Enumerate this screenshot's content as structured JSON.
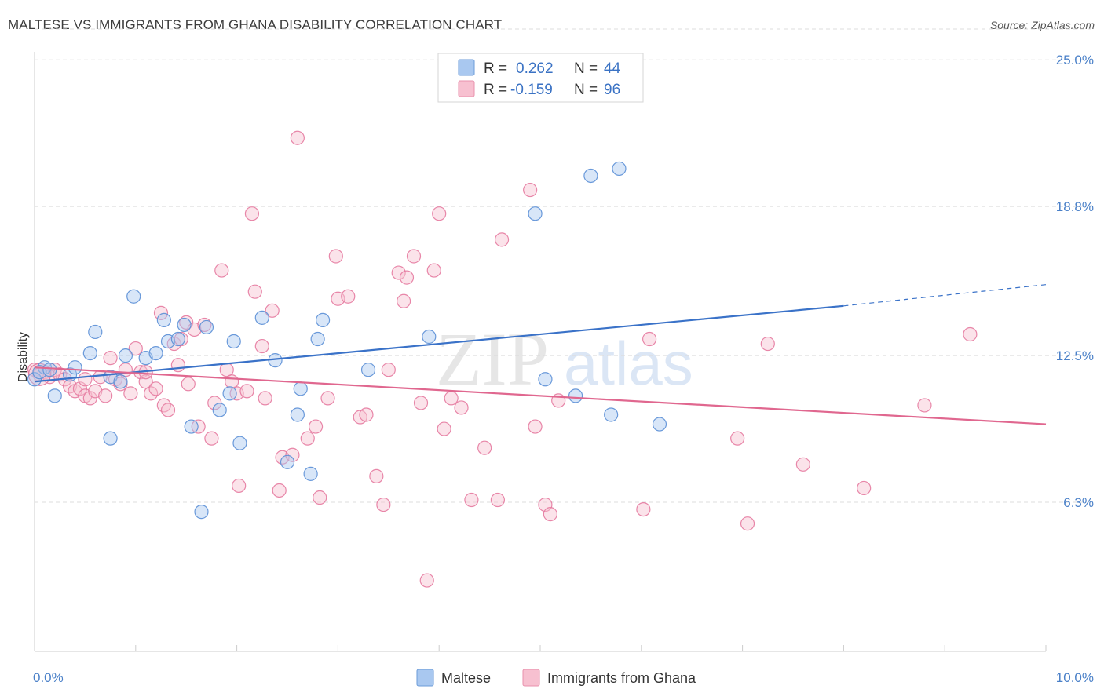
{
  "title": "MALTESE VS IMMIGRANTS FROM GHANA DISABILITY CORRELATION CHART",
  "source": "Source: ZipAtlas.com",
  "watermark": {
    "zip": "ZIP",
    "atlas": "atlas"
  },
  "legend": {
    "rows": [
      {
        "r_label": "R =",
        "r_value": "0.262",
        "n_label": "N =",
        "n_value": "44",
        "color": "#a9c8f0",
        "stroke": "#6b9bd8"
      },
      {
        "r_label": "R =",
        "r_value": "-0.159",
        "n_label": "N =",
        "n_value": "96",
        "color": "#f7c0d0",
        "stroke": "#e890ac"
      }
    ]
  },
  "bottom_legend": [
    {
      "label": "Maltese",
      "color": "#a9c8f0",
      "stroke": "#6b9bd8"
    },
    {
      "label": "Immigrants from Ghana",
      "color": "#f7c0d0",
      "stroke": "#e890ac"
    }
  ],
  "chart_data": {
    "type": "scatter",
    "title": "MALTESE VS IMMIGRANTS FROM GHANA DISABILITY CORRELATION CHART",
    "xlabel": "",
    "ylabel": "Disability",
    "xlim": [
      0,
      10
    ],
    "ylim": [
      0,
      26.5
    ],
    "x_ticks": [
      {
        "value": 0,
        "label": "0.0%"
      },
      {
        "value": 10,
        "label": "10.0%"
      }
    ],
    "y_ticks": [
      {
        "value": 6.3,
        "label": "6.3%"
      },
      {
        "value": 12.5,
        "label": "12.5%"
      },
      {
        "value": 18.8,
        "label": "18.8%"
      },
      {
        "value": 25.0,
        "label": "25.0%"
      }
    ],
    "grid": "horizontal-dashed",
    "colors": {
      "maltese": "#5b8fd6",
      "ghana": "#e57aa0",
      "maltese_line": "#3a72c8",
      "ghana_line": "#e0678f"
    },
    "series": [
      {
        "name": "Maltese",
        "trend": {
          "x0": 0,
          "y0": 11.4,
          "x1": 8.0,
          "y1": 14.6,
          "dashed_to_x": 10.0,
          "dashed_to_y": 15.5
        },
        "points": [
          [
            0.0,
            11.5
          ],
          [
            0.1,
            12.0
          ],
          [
            0.2,
            10.8
          ],
          [
            0.35,
            11.7
          ],
          [
            0.4,
            12.0
          ],
          [
            0.55,
            12.6
          ],
          [
            0.6,
            13.5
          ],
          [
            0.75,
            11.6
          ],
          [
            0.75,
            9.0
          ],
          [
            0.85,
            11.4
          ],
          [
            0.9,
            12.5
          ],
          [
            0.98,
            15.0
          ],
          [
            1.1,
            12.4
          ],
          [
            1.2,
            12.6
          ],
          [
            1.28,
            14.0
          ],
          [
            1.32,
            13.1
          ],
          [
            1.42,
            13.2
          ],
          [
            1.48,
            13.8
          ],
          [
            1.55,
            9.5
          ],
          [
            1.65,
            5.9
          ],
          [
            1.7,
            13.7
          ],
          [
            1.83,
            10.2
          ],
          [
            1.93,
            10.9
          ],
          [
            1.97,
            13.1
          ],
          [
            2.03,
            8.8
          ],
          [
            2.25,
            14.1
          ],
          [
            2.38,
            12.3
          ],
          [
            2.5,
            8.0
          ],
          [
            2.6,
            10.0
          ],
          [
            2.63,
            11.1
          ],
          [
            2.73,
            7.5
          ],
          [
            2.8,
            13.2
          ],
          [
            2.85,
            14.0
          ],
          [
            3.3,
            11.9
          ],
          [
            3.9,
            13.3
          ],
          [
            4.95,
            18.5
          ],
          [
            5.05,
            11.5
          ],
          [
            5.35,
            10.8
          ],
          [
            5.5,
            20.1
          ],
          [
            5.7,
            10.0
          ],
          [
            5.78,
            20.4
          ],
          [
            6.18,
            9.6
          ],
          [
            0.05,
            11.8
          ],
          [
            0.15,
            11.9
          ]
        ]
      },
      {
        "name": "Immigrants from Ghana",
        "trend": {
          "x0": 0,
          "y0": 12.0,
          "x1": 10.0,
          "y1": 9.6
        },
        "points": [
          [
            0.0,
            11.9
          ],
          [
            0.05,
            11.7
          ],
          [
            0.1,
            11.8
          ],
          [
            0.15,
            11.6
          ],
          [
            0.2,
            11.9
          ],
          [
            0.25,
            11.7
          ],
          [
            0.3,
            11.5
          ],
          [
            0.35,
            11.2
          ],
          [
            0.4,
            11.0
          ],
          [
            0.45,
            11.1
          ],
          [
            0.5,
            10.8
          ],
          [
            0.55,
            10.7
          ],
          [
            0.6,
            11.0
          ],
          [
            0.65,
            11.6
          ],
          [
            0.7,
            10.8
          ],
          [
            0.75,
            12.4
          ],
          [
            0.8,
            11.5
          ],
          [
            0.85,
            11.3
          ],
          [
            0.9,
            11.9
          ],
          [
            0.95,
            10.9
          ],
          [
            1.0,
            12.8
          ],
          [
            1.05,
            11.8
          ],
          [
            1.1,
            11.4
          ],
          [
            1.15,
            10.9
          ],
          [
            1.2,
            11.1
          ],
          [
            1.25,
            14.3
          ],
          [
            1.28,
            10.4
          ],
          [
            1.32,
            10.2
          ],
          [
            1.38,
            13.0
          ],
          [
            1.42,
            12.1
          ],
          [
            1.45,
            13.2
          ],
          [
            1.5,
            13.9
          ],
          [
            1.52,
            11.3
          ],
          [
            1.58,
            13.6
          ],
          [
            1.62,
            9.5
          ],
          [
            1.68,
            13.8
          ],
          [
            1.75,
            9.0
          ],
          [
            1.78,
            10.5
          ],
          [
            1.85,
            16.1
          ],
          [
            1.9,
            11.9
          ],
          [
            1.95,
            11.4
          ],
          [
            2.0,
            10.9
          ],
          [
            2.02,
            7.0
          ],
          [
            2.1,
            11.0
          ],
          [
            2.15,
            18.5
          ],
          [
            2.18,
            15.2
          ],
          [
            2.25,
            12.9
          ],
          [
            2.28,
            10.7
          ],
          [
            2.35,
            14.4
          ],
          [
            2.42,
            6.8
          ],
          [
            2.45,
            8.2
          ],
          [
            2.55,
            8.3
          ],
          [
            2.6,
            21.7
          ],
          [
            2.7,
            9.0
          ],
          [
            2.78,
            9.5
          ],
          [
            2.82,
            6.5
          ],
          [
            2.9,
            10.7
          ],
          [
            2.98,
            16.7
          ],
          [
            3.0,
            14.9
          ],
          [
            3.1,
            15.0
          ],
          [
            3.22,
            9.9
          ],
          [
            3.28,
            10.0
          ],
          [
            3.38,
            7.4
          ],
          [
            3.45,
            6.2
          ],
          [
            3.5,
            11.9
          ],
          [
            3.6,
            16.0
          ],
          [
            3.65,
            14.8
          ],
          [
            3.68,
            15.8
          ],
          [
            3.75,
            16.7
          ],
          [
            3.82,
            10.5
          ],
          [
            3.88,
            3.0
          ],
          [
            3.95,
            16.1
          ],
          [
            4.0,
            18.5
          ],
          [
            4.05,
            9.4
          ],
          [
            4.12,
            10.7
          ],
          [
            4.22,
            10.3
          ],
          [
            4.32,
            6.4
          ],
          [
            4.45,
            8.6
          ],
          [
            4.58,
            6.4
          ],
          [
            4.62,
            17.4
          ],
          [
            4.9,
            19.5
          ],
          [
            4.95,
            9.5
          ],
          [
            5.05,
            6.2
          ],
          [
            5.1,
            5.8
          ],
          [
            5.18,
            10.6
          ],
          [
            6.02,
            6.0
          ],
          [
            6.08,
            13.2
          ],
          [
            6.95,
            9.0
          ],
          [
            7.05,
            5.4
          ],
          [
            7.25,
            13.0
          ],
          [
            7.6,
            7.9
          ],
          [
            8.2,
            6.9
          ],
          [
            8.8,
            10.4
          ],
          [
            9.25,
            13.4
          ],
          [
            1.1,
            11.8
          ],
          [
            0.5,
            11.5
          ]
        ]
      }
    ]
  }
}
